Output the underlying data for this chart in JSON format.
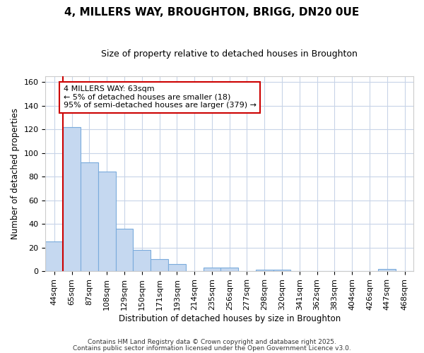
{
  "title_line1": "4, MILLERS WAY, BROUGHTON, BRIGG, DN20 0UE",
  "title_line2": "Size of property relative to detached houses in Broughton",
  "xlabel": "Distribution of detached houses by size in Broughton",
  "ylabel": "Number of detached properties",
  "categories": [
    "44sqm",
    "65sqm",
    "87sqm",
    "108sqm",
    "129sqm",
    "150sqm",
    "171sqm",
    "193sqm",
    "214sqm",
    "235sqm",
    "256sqm",
    "277sqm",
    "298sqm",
    "320sqm",
    "341sqm",
    "362sqm",
    "383sqm",
    "404sqm",
    "426sqm",
    "447sqm",
    "468sqm"
  ],
  "values": [
    25,
    122,
    92,
    84,
    36,
    18,
    10,
    6,
    0,
    3,
    3,
    0,
    1,
    1,
    0,
    0,
    0,
    0,
    0,
    2,
    0
  ],
  "bar_color": "#c5d8f0",
  "bar_edge_color": "#7aabdc",
  "bar_edge_width": 0.8,
  "annotation_text": "4 MILLERS WAY: 63sqm\n← 5% of detached houses are smaller (18)\n95% of semi-detached houses are larger (379) →",
  "annotation_box_facecolor": "#ffffff",
  "annotation_box_edgecolor": "#cc0000",
  "vline_color": "#cc0000",
  "vline_pos": 0.5,
  "ylim": [
    0,
    165
  ],
  "yticks": [
    0,
    20,
    40,
    60,
    80,
    100,
    120,
    140,
    160
  ],
  "background_color": "#ffffff",
  "plot_bg_color": "#ffffff",
  "grid_color": "#c8d4e8",
  "title_fontsize": 11,
  "subtitle_fontsize": 9,
  "axis_label_fontsize": 8.5,
  "tick_fontsize": 8,
  "annotation_fontsize": 8,
  "footer_line1": "Contains HM Land Registry data © Crown copyright and database right 2025.",
  "footer_line2": "Contains public sector information licensed under the Open Government Licence v3.0."
}
